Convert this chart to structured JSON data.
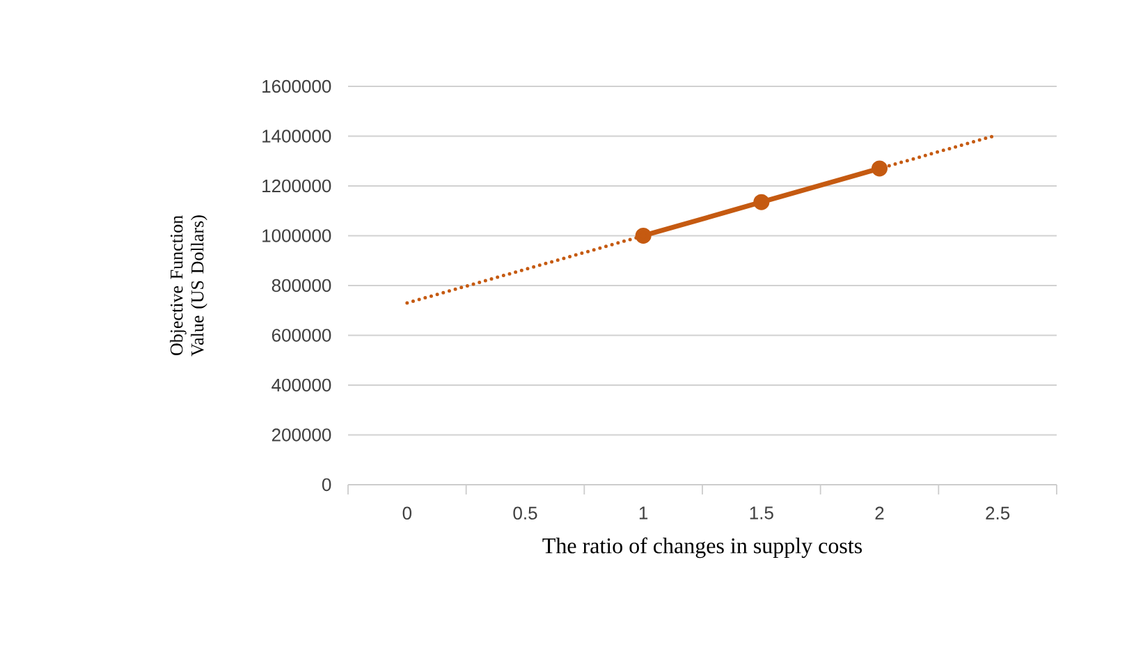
{
  "chart_data": {
    "type": "line",
    "xlabel": "The ratio of changes in supply costs",
    "ylabel": "Objective Function Value (US Dollars)",
    "categories": [
      "0",
      "0.5",
      "1",
      "1.5",
      "2",
      "2.5"
    ],
    "series": [
      {
        "color": "#c55a11",
        "values": [
          null,
          null,
          1000000,
          1135000,
          1270000,
          null
        ],
        "marker": "circle",
        "line_style": "solid"
      },
      {
        "color": "#c55a11",
        "values": [
          730000,
          865000,
          1000000,
          1135000,
          1270000,
          1405000
        ],
        "marker": "none",
        "line_style": "dotted"
      }
    ],
    "ylim": [
      0,
      1600000
    ],
    "yticks": [
      0,
      200000,
      400000,
      600000,
      800000,
      1000000,
      1200000,
      1400000,
      1600000
    ],
    "grid": "y"
  }
}
